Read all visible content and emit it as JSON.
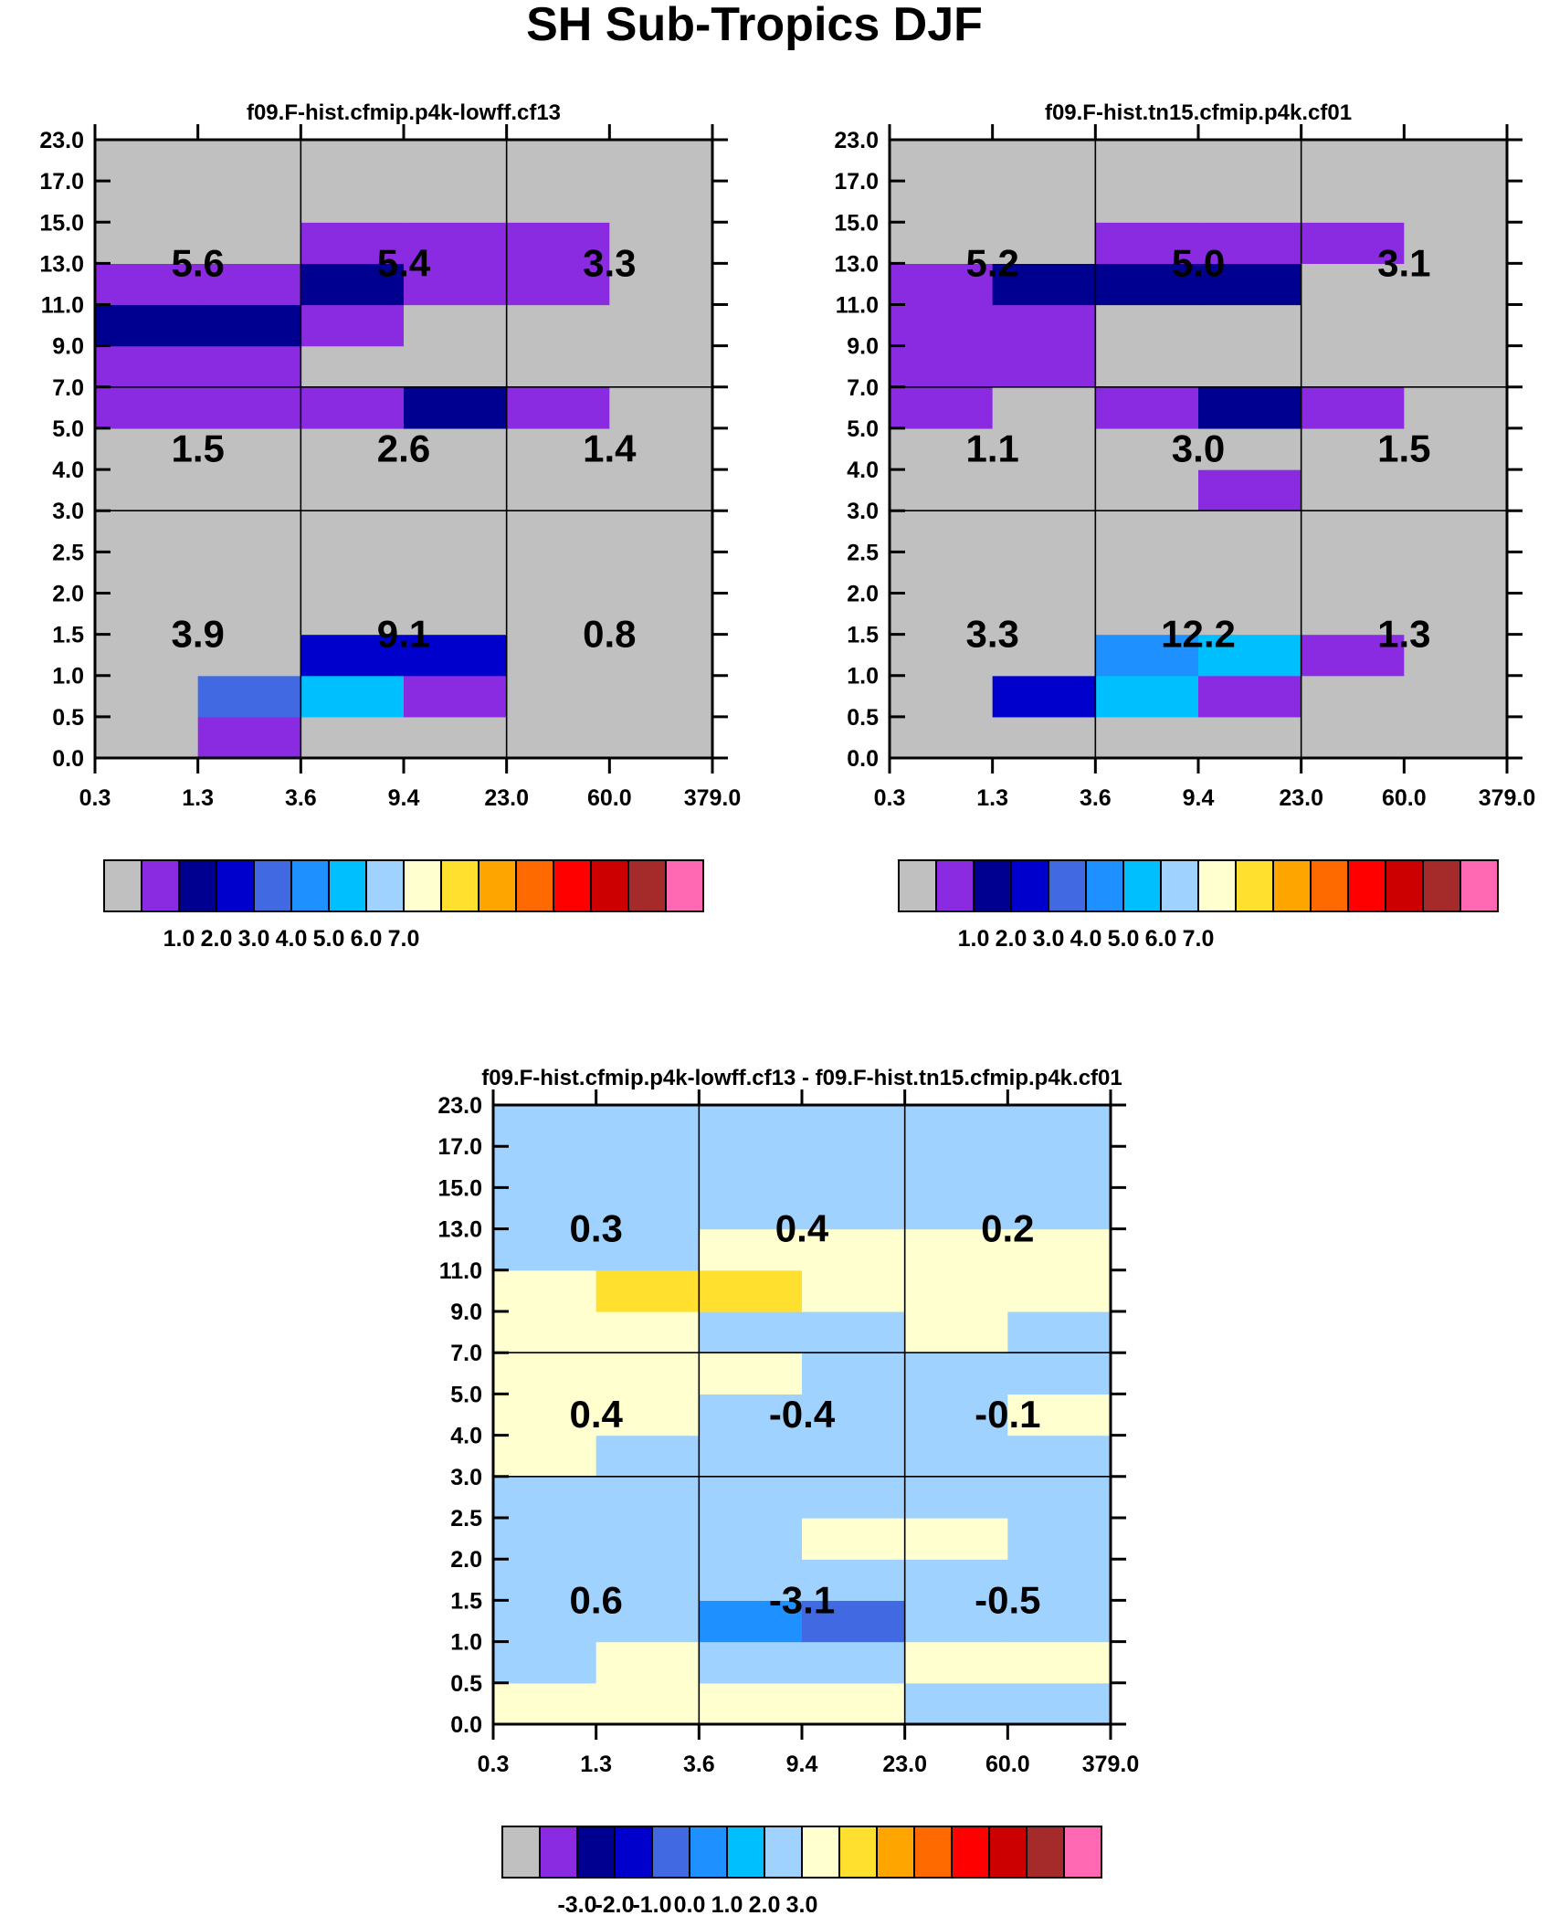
{
  "title": "SH Sub-Tropics DJF",
  "palette": [
    "#c0c0c0",
    "#8a2be2",
    "#000090",
    "#0000cd",
    "#4169e1",
    "#1e90ff",
    "#00bfff",
    "#a0d2ff",
    "#ffffd0",
    "#ffe02e",
    "#ffa500",
    "#ff6a00",
    "#ff0000",
    "#cc0000",
    "#a52a2a",
    "#ff69b4"
  ],
  "chart_data": [
    {
      "type": "heatmap",
      "title": "f09.F-hist.cfmip.p4k-lowff.cf13",
      "x_tick_labels": [
        "0.3",
        "1.3",
        "3.6",
        "9.4",
        "23.0",
        "60.0",
        "379.0"
      ],
      "y_tick_labels": [
        "0.0",
        "0.5",
        "1.0",
        "1.5",
        "2.0",
        "2.5",
        "3.0",
        "4.0",
        "5.0",
        "7.0",
        "9.0",
        "11.0",
        "13.0",
        "15.0",
        "17.0",
        "23.0"
      ],
      "note": "grid rows ordered bottom (0.0-0.5) to top (17.0-23.0); values are palette bin indices",
      "grid": [
        [
          0,
          1,
          0,
          0,
          0,
          0
        ],
        [
          0,
          4,
          6,
          1,
          0,
          0
        ],
        [
          0,
          0,
          3,
          3,
          0,
          0
        ],
        [
          0,
          0,
          0,
          0,
          0,
          0
        ],
        [
          0,
          0,
          0,
          0,
          0,
          0
        ],
        [
          0,
          0,
          0,
          0,
          0,
          0
        ],
        [
          0,
          0,
          0,
          0,
          0,
          0
        ],
        [
          0,
          0,
          0,
          0,
          0,
          0
        ],
        [
          1,
          1,
          1,
          2,
          1,
          0
        ],
        [
          1,
          1,
          0,
          0,
          0,
          0
        ],
        [
          2,
          2,
          1,
          0,
          0,
          0
        ],
        [
          1,
          1,
          2,
          1,
          1,
          0
        ],
        [
          0,
          0,
          1,
          1,
          1,
          0
        ],
        [
          0,
          0,
          0,
          0,
          0,
          0
        ],
        [
          0,
          0,
          0,
          0,
          0,
          0
        ]
      ],
      "region_labels": [
        {
          "label": "5.6",
          "col": 1,
          "row": "high"
        },
        {
          "label": "5.4",
          "col": 3,
          "row": "high"
        },
        {
          "label": "3.3",
          "col": 5,
          "row": "high"
        },
        {
          "label": "1.5",
          "col": 1,
          "row": "mid"
        },
        {
          "label": "2.6",
          "col": 3,
          "row": "mid"
        },
        {
          "label": "1.4",
          "col": 5,
          "row": "mid"
        },
        {
          "label": "3.9",
          "col": 1,
          "row": "low"
        },
        {
          "label": "9.1",
          "col": 3,
          "row": "low"
        },
        {
          "label": "0.8",
          "col": 5,
          "row": "low"
        }
      ],
      "colorbar_labels": [
        "1.0",
        "2.0",
        "3.0",
        "4.0",
        "5.0",
        "6.0",
        "7.0"
      ]
    },
    {
      "type": "heatmap",
      "title": "f09.F-hist.tn15.cfmip.p4k.cf01",
      "x_tick_labels": [
        "0.3",
        "1.3",
        "3.6",
        "9.4",
        "23.0",
        "60.0",
        "379.0"
      ],
      "y_tick_labels": [
        "0.0",
        "0.5",
        "1.0",
        "1.5",
        "2.0",
        "2.5",
        "3.0",
        "4.0",
        "5.0",
        "7.0",
        "9.0",
        "11.0",
        "13.0",
        "15.0",
        "17.0",
        "23.0"
      ],
      "note": "grid rows ordered bottom (0.0-0.5) to top (17.0-23.0); values are palette bin indices",
      "grid": [
        [
          0,
          0,
          0,
          0,
          0,
          0
        ],
        [
          0,
          3,
          6,
          1,
          0,
          0
        ],
        [
          0,
          0,
          5,
          6,
          1,
          0
        ],
        [
          0,
          0,
          0,
          0,
          0,
          0
        ],
        [
          0,
          0,
          0,
          0,
          0,
          0
        ],
        [
          0,
          0,
          0,
          0,
          0,
          0
        ],
        [
          0,
          0,
          0,
          1,
          0,
          0
        ],
        [
          0,
          0,
          0,
          0,
          0,
          0
        ],
        [
          1,
          0,
          1,
          2,
          1,
          0
        ],
        [
          1,
          1,
          0,
          0,
          0,
          0
        ],
        [
          1,
          1,
          0,
          0,
          0,
          0
        ],
        [
          1,
          2,
          2,
          2,
          0,
          0
        ],
        [
          0,
          0,
          1,
          1,
          1,
          0
        ],
        [
          0,
          0,
          0,
          0,
          0,
          0
        ],
        [
          0,
          0,
          0,
          0,
          0,
          0
        ]
      ],
      "region_labels": [
        {
          "label": "5.2",
          "col": 1,
          "row": "high"
        },
        {
          "label": "5.0",
          "col": 3,
          "row": "high"
        },
        {
          "label": "3.1",
          "col": 5,
          "row": "high"
        },
        {
          "label": "1.1",
          "col": 1,
          "row": "mid"
        },
        {
          "label": "3.0",
          "col": 3,
          "row": "mid"
        },
        {
          "label": "1.5",
          "col": 5,
          "row": "mid"
        },
        {
          "label": "3.3",
          "col": 1,
          "row": "low"
        },
        {
          "label": "12.2",
          "col": 3,
          "row": "low"
        },
        {
          "label": "1.3",
          "col": 5,
          "row": "low"
        }
      ],
      "colorbar_labels": [
        "1.0",
        "2.0",
        "3.0",
        "4.0",
        "5.0",
        "6.0",
        "7.0"
      ]
    },
    {
      "type": "heatmap",
      "title": "f09.F-hist.cfmip.p4k-lowff.cf13 - f09.F-hist.tn15.cfmip.p4k.cf01",
      "x_tick_labels": [
        "0.3",
        "1.3",
        "3.6",
        "9.4",
        "23.0",
        "60.0",
        "379.0"
      ],
      "y_tick_labels": [
        "0.0",
        "0.5",
        "1.0",
        "1.5",
        "2.0",
        "2.5",
        "3.0",
        "4.0",
        "5.0",
        "7.0",
        "9.0",
        "11.0",
        "13.0",
        "15.0",
        "17.0",
        "23.0"
      ],
      "note": "grid rows ordered bottom (0.0-0.5) to top (17.0-23.0); values are palette bin indices",
      "grid": [
        [
          8,
          8,
          8,
          8,
          7,
          7
        ],
        [
          7,
          8,
          7,
          7,
          8,
          8
        ],
        [
          7,
          7,
          5,
          4,
          7,
          7
        ],
        [
          7,
          7,
          7,
          7,
          7,
          7
        ],
        [
          7,
          7,
          7,
          8,
          8,
          7
        ],
        [
          7,
          7,
          7,
          7,
          7,
          7
        ],
        [
          8,
          7,
          7,
          7,
          7,
          7
        ],
        [
          8,
          8,
          7,
          7,
          7,
          8
        ],
        [
          8,
          8,
          8,
          7,
          7,
          7
        ],
        [
          8,
          8,
          7,
          7,
          8,
          7
        ],
        [
          8,
          9,
          9,
          8,
          8,
          8
        ],
        [
          7,
          7,
          8,
          8,
          8,
          8
        ],
        [
          7,
          7,
          7,
          7,
          7,
          7
        ],
        [
          7,
          7,
          7,
          7,
          7,
          7
        ],
        [
          7,
          7,
          7,
          7,
          7,
          7
        ]
      ],
      "region_labels": [
        {
          "label": "0.3",
          "col": 1,
          "row": "high"
        },
        {
          "label": "0.4",
          "col": 3,
          "row": "high"
        },
        {
          "label": "0.2",
          "col": 5,
          "row": "high"
        },
        {
          "label": "0.4",
          "col": 1,
          "row": "mid"
        },
        {
          "label": "-0.4",
          "col": 3,
          "row": "mid"
        },
        {
          "label": "-0.1",
          "col": 5,
          "row": "mid"
        },
        {
          "label": "0.6",
          "col": 1,
          "row": "low"
        },
        {
          "label": "-3.1",
          "col": 3,
          "row": "low"
        },
        {
          "label": "-0.5",
          "col": 5,
          "row": "low"
        }
      ],
      "colorbar_labels": [
        "-3.0",
        "-2.0",
        "-1.0",
        "0.0",
        "1.0",
        "2.0",
        "3.0"
      ]
    }
  ]
}
